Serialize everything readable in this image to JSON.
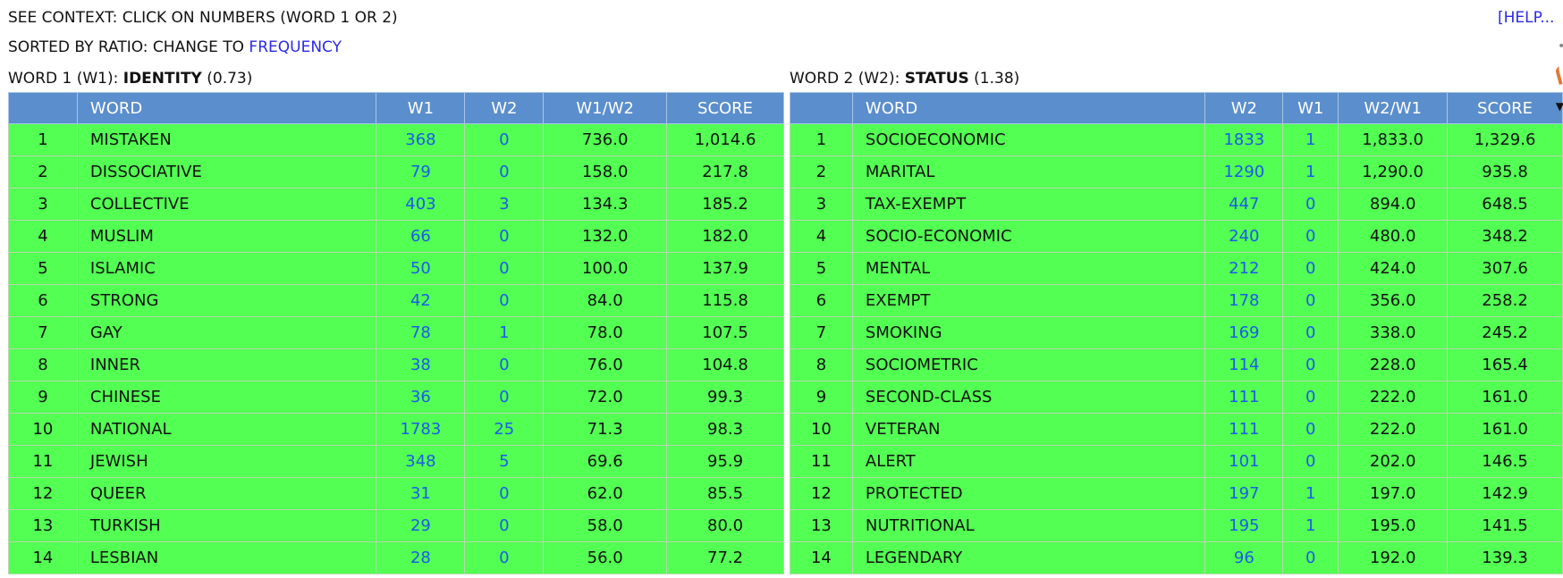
{
  "header": {
    "context_text": "SEE CONTEXT: CLICK ON NUMBERS (WORD 1 OR 2)",
    "sorted_text": "SORTED BY RATIO: CHANGE TO",
    "frequency_link": "FREQUENCY",
    "help_link": "[HELP..."
  },
  "word1": {
    "prefix": "WORD 1 (W1):",
    "word": "IDENTITY",
    "ratio": "(0.73)",
    "columns": [
      "",
      "WORD",
      "W1",
      "W2",
      "W1/W2",
      "SCORE"
    ],
    "rows": [
      {
        "rank": "1",
        "word": "MISTAKEN",
        "a": "368",
        "b": "0",
        "ratio": "736.0",
        "score": "1,014.6"
      },
      {
        "rank": "2",
        "word": "DISSOCIATIVE",
        "a": "79",
        "b": "0",
        "ratio": "158.0",
        "score": "217.8"
      },
      {
        "rank": "3",
        "word": "COLLECTIVE",
        "a": "403",
        "b": "3",
        "ratio": "134.3",
        "score": "185.2"
      },
      {
        "rank": "4",
        "word": "MUSLIM",
        "a": "66",
        "b": "0",
        "ratio": "132.0",
        "score": "182.0"
      },
      {
        "rank": "5",
        "word": "ISLAMIC",
        "a": "50",
        "b": "0",
        "ratio": "100.0",
        "score": "137.9"
      },
      {
        "rank": "6",
        "word": "STRONG",
        "a": "42",
        "b": "0",
        "ratio": "84.0",
        "score": "115.8"
      },
      {
        "rank": "7",
        "word": "GAY",
        "a": "78",
        "b": "1",
        "ratio": "78.0",
        "score": "107.5"
      },
      {
        "rank": "8",
        "word": "INNER",
        "a": "38",
        "b": "0",
        "ratio": "76.0",
        "score": "104.8"
      },
      {
        "rank": "9",
        "word": "CHINESE",
        "a": "36",
        "b": "0",
        "ratio": "72.0",
        "score": "99.3"
      },
      {
        "rank": "10",
        "word": "NATIONAL",
        "a": "1783",
        "b": "25",
        "ratio": "71.3",
        "score": "98.3"
      },
      {
        "rank": "11",
        "word": "JEWISH",
        "a": "348",
        "b": "5",
        "ratio": "69.6",
        "score": "95.9"
      },
      {
        "rank": "12",
        "word": "QUEER",
        "a": "31",
        "b": "0",
        "ratio": "62.0",
        "score": "85.5"
      },
      {
        "rank": "13",
        "word": "TURKISH",
        "a": "29",
        "b": "0",
        "ratio": "58.0",
        "score": "80.0"
      },
      {
        "rank": "14",
        "word": "LESBIAN",
        "a": "28",
        "b": "0",
        "ratio": "56.0",
        "score": "77.2"
      }
    ]
  },
  "word2": {
    "prefix": "WORD 2 (W2):",
    "word": "STATUS",
    "ratio": "(1.38)",
    "columns": [
      "",
      "WORD",
      "W2",
      "W1",
      "W2/W1",
      "SCORE"
    ],
    "rows": [
      {
        "rank": "1",
        "word": "SOCIOECONOMIC",
        "a": "1833",
        "b": "1",
        "ratio": "1,833.0",
        "score": "1,329.6"
      },
      {
        "rank": "2",
        "word": "MARITAL",
        "a": "1290",
        "b": "1",
        "ratio": "1,290.0",
        "score": "935.8"
      },
      {
        "rank": "3",
        "word": "TAX-EXEMPT",
        "a": "447",
        "b": "0",
        "ratio": "894.0",
        "score": "648.5"
      },
      {
        "rank": "4",
        "word": "SOCIO-ECONOMIC",
        "a": "240",
        "b": "0",
        "ratio": "480.0",
        "score": "348.2"
      },
      {
        "rank": "5",
        "word": "MENTAL",
        "a": "212",
        "b": "0",
        "ratio": "424.0",
        "score": "307.6"
      },
      {
        "rank": "6",
        "word": "EXEMPT",
        "a": "178",
        "b": "0",
        "ratio": "356.0",
        "score": "258.2"
      },
      {
        "rank": "7",
        "word": "SMOKING",
        "a": "169",
        "b": "0",
        "ratio": "338.0",
        "score": "245.2"
      },
      {
        "rank": "8",
        "word": "SOCIOMETRIC",
        "a": "114",
        "b": "0",
        "ratio": "228.0",
        "score": "165.4"
      },
      {
        "rank": "9",
        "word": "SECOND-CLASS",
        "a": "111",
        "b": "0",
        "ratio": "222.0",
        "score": "161.0"
      },
      {
        "rank": "10",
        "word": "VETERAN",
        "a": "111",
        "b": "0",
        "ratio": "222.0",
        "score": "161.0"
      },
      {
        "rank": "11",
        "word": "ALERT",
        "a": "101",
        "b": "0",
        "ratio": "202.0",
        "score": "146.5"
      },
      {
        "rank": "12",
        "word": "PROTECTED",
        "a": "197",
        "b": "1",
        "ratio": "197.0",
        "score": "142.9"
      },
      {
        "rank": "13",
        "word": "NUTRITIONAL",
        "a": "195",
        "b": "1",
        "ratio": "195.0",
        "score": "141.5"
      },
      {
        "rank": "14",
        "word": "LEGENDARY",
        "a": "96",
        "b": "0",
        "ratio": "192.0",
        "score": "139.3"
      }
    ]
  },
  "colors": {
    "row_bg": "#52ff52",
    "header_bg": "#5b8ecc",
    "link": "#2a2ae6",
    "number_link": "#1a5ce8"
  }
}
